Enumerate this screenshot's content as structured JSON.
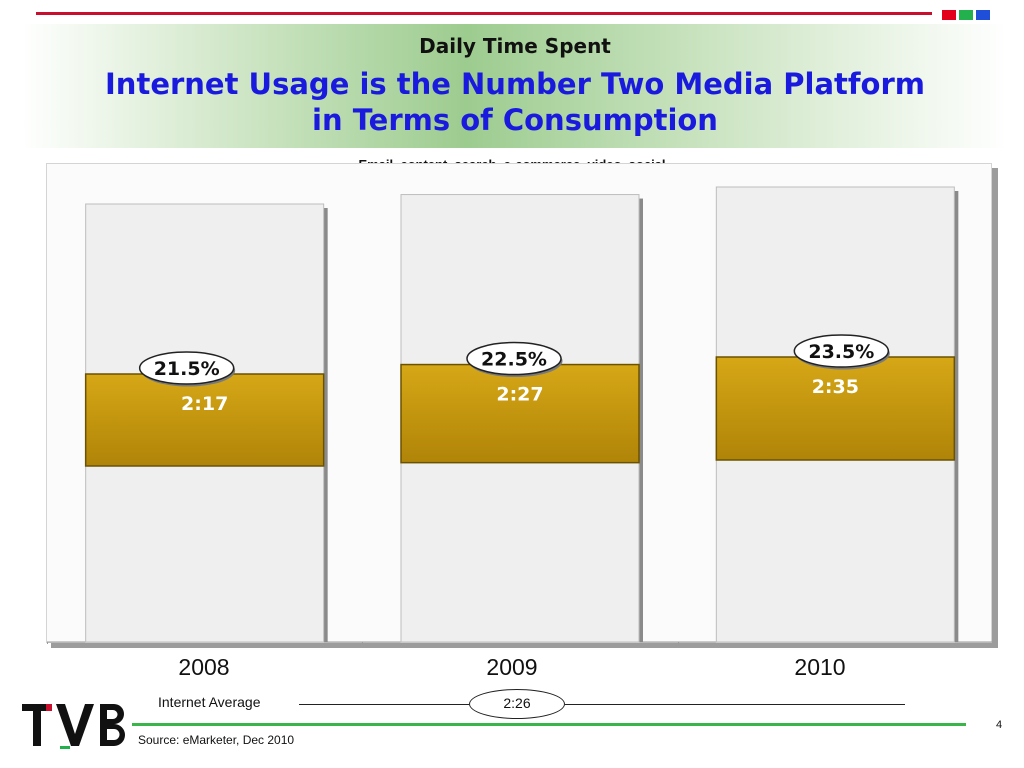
{
  "header": {
    "title": "Daily Time Spent",
    "headline_line1": "Internet Usage is the Number Two Media Platform",
    "headline_line2": "in Terms of Consumption"
  },
  "chart_data": {
    "type": "bar",
    "subtitle": "Email, content, search, e-commerce, video, social",
    "categories": [
      "2008",
      "2009",
      "2010"
    ],
    "series": [
      {
        "values": [
          "2:17",
          "2:27",
          "2:35"
        ],
        "minutes": [
          137,
          147,
          155
        ]
      }
    ],
    "share_labels": [
      "21.5%",
      "22.5%",
      "23.5%"
    ],
    "share_values": [
      21.5,
      22.5,
      23.5
    ],
    "average": {
      "label": "Internet Average",
      "value": "2:26"
    }
  },
  "footer": {
    "source": "Source: eMarketer, Dec 2010",
    "page_number": "4",
    "logo_text": "TVB"
  },
  "colors": {
    "accent_red": "#c8102e",
    "headline_blue": "#1a1adf",
    "segment_gold": "#c0920a",
    "rule_green": "#3ab54a"
  }
}
